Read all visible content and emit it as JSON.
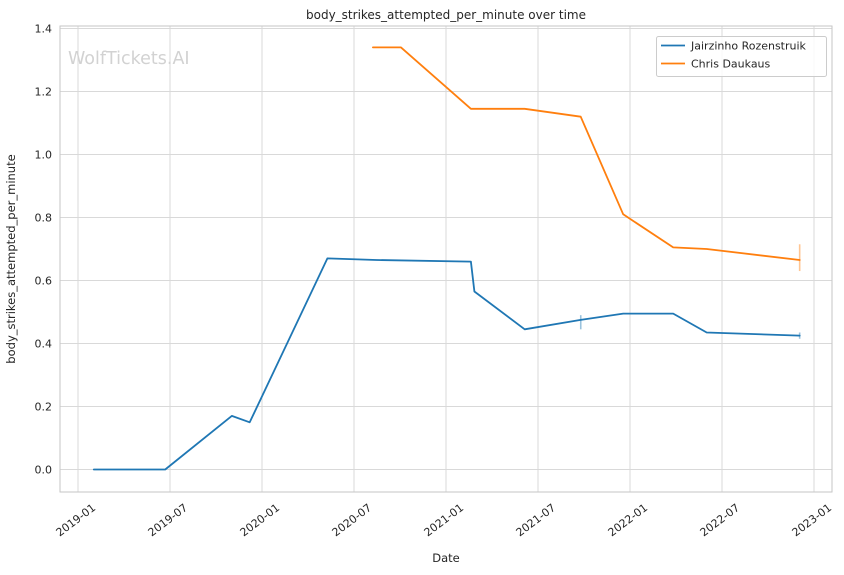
{
  "watermark": "WolfTickets.AI",
  "chart_data": {
    "type": "line",
    "title": "body_strikes_attempted_per_minute over time",
    "xlabel": "Date",
    "ylabel": "body_strikes_attempted_per_minute",
    "x_tick_labels": [
      "2019-01",
      "2019-07",
      "2020-01",
      "2020-07",
      "2021-01",
      "2021-07",
      "2022-01",
      "2022-07",
      "2023-01"
    ],
    "y_tick_labels": [
      "0.0",
      "0.2",
      "0.4",
      "0.6",
      "0.8",
      "1.0",
      "1.2",
      "1.4"
    ],
    "y_ticks": [
      0.0,
      0.2,
      0.4,
      0.6,
      0.8,
      1.0,
      1.2,
      1.4
    ],
    "ylim": [
      -0.07,
      1.41
    ],
    "grid": true,
    "legend_position": "upper right",
    "legend": [
      {
        "label": "Jairzinho Rozenstruik",
        "color": "#1f77b4"
      },
      {
        "label": "Chris Daukaus",
        "color": "#ff7f0e"
      }
    ],
    "series": [
      {
        "name": "Jairzinho Rozenstruik",
        "color": "#1f77b4",
        "points": [
          {
            "date": "2019-02-02",
            "value": 0.0
          },
          {
            "date": "2019-06-22",
            "value": 0.0
          },
          {
            "date": "2019-11-02",
            "value": 0.17
          },
          {
            "date": "2019-12-07",
            "value": 0.15
          },
          {
            "date": "2020-05-09",
            "value": 0.67
          },
          {
            "date": "2020-08-15",
            "value": 0.665
          },
          {
            "date": "2021-02-20",
            "value": 0.66
          },
          {
            "date": "2021-02-27",
            "value": 0.565
          },
          {
            "date": "2021-06-05",
            "value": 0.445
          },
          {
            "date": "2021-09-25",
            "value": 0.475
          },
          {
            "date": "2021-12-18",
            "value": 0.495
          },
          {
            "date": "2022-03-26",
            "value": 0.495
          },
          {
            "date": "2022-06-01",
            "value": 0.435
          },
          {
            "date": "2022-12-03",
            "value": 0.425
          }
        ],
        "error_bars": [
          {
            "date": "2021-09-25",
            "lo": 0.445,
            "hi": 0.49
          },
          {
            "date": "2022-12-03",
            "lo": 0.415,
            "hi": 0.435
          }
        ]
      },
      {
        "name": "Chris Daukaus",
        "color": "#ff7f0e",
        "points": [
          {
            "date": "2020-08-08",
            "value": 1.34
          },
          {
            "date": "2020-10-03",
            "value": 1.34
          },
          {
            "date": "2021-02-20",
            "value": 1.145
          },
          {
            "date": "2021-06-05",
            "value": 1.145
          },
          {
            "date": "2021-09-25",
            "value": 1.12
          },
          {
            "date": "2021-12-18",
            "value": 0.81
          },
          {
            "date": "2022-03-26",
            "value": 0.705
          },
          {
            "date": "2022-06-01",
            "value": 0.7
          },
          {
            "date": "2022-12-03",
            "value": 0.665
          }
        ],
        "error_bars": [
          {
            "date": "2022-12-03",
            "lo": 0.63,
            "hi": 0.715
          }
        ]
      }
    ]
  },
  "colors": {
    "blue": "#1f77b4",
    "orange": "#ff7f0e",
    "grid": "#d9d9d9",
    "spine": "#c6c6c6",
    "text": "#262626",
    "watermark": "#d2d2d2",
    "background": "#ffffff"
  }
}
